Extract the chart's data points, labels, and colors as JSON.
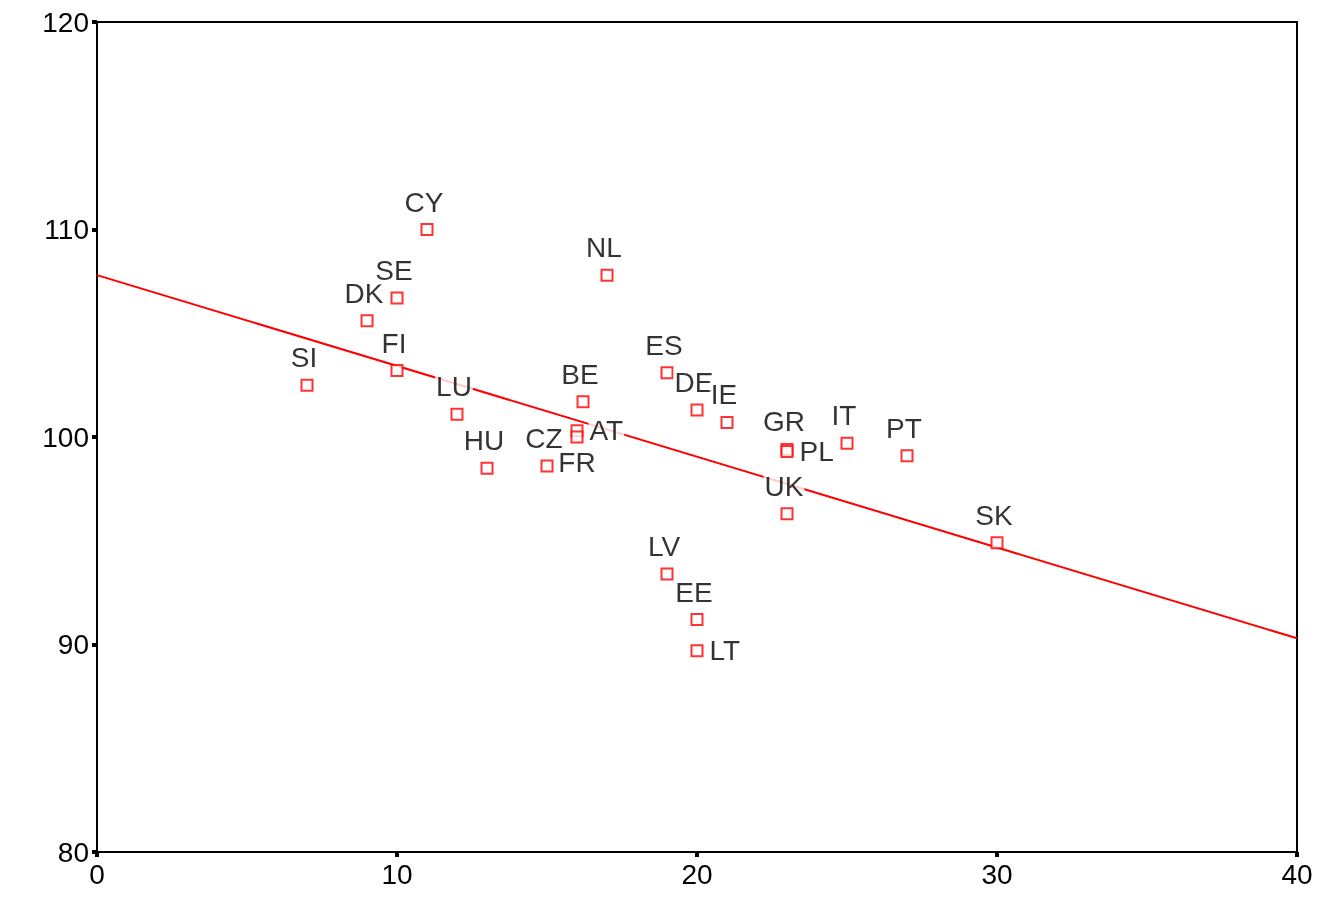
{
  "chart_data": {
    "type": "scatter",
    "xlim": [
      0,
      40
    ],
    "xticks": [
      0,
      10,
      20,
      30,
      40
    ],
    "ylim": [
      80,
      120
    ],
    "yticks": [
      80,
      90,
      100,
      110,
      120
    ],
    "grid": false,
    "series": [
      {
        "color": "#ff0000",
        "marker": "square",
        "x": [
          7,
          9,
          10,
          11,
          10,
          12,
          13,
          15,
          16.2,
          16,
          16,
          17,
          19,
          20,
          21,
          23,
          23,
          25,
          27,
          23,
          30,
          19,
          20,
          20
        ],
        "values": [
          102.5,
          105.6,
          106.7,
          110,
          103.2,
          101.1,
          98.5,
          98.6,
          101.7,
          100.3,
          100,
          107.8,
          103.1,
          101.3,
          100.7,
          99.4,
          99.3,
          99.7,
          99.1,
          96.3,
          94.9,
          93.4,
          91.2,
          89.7
        ],
        "value_labels": [
          "SI",
          "DK",
          "SE",
          "CY",
          "FI",
          "LU",
          "HU",
          "CZ",
          "BE",
          "AT",
          "FR",
          "NL",
          "ES",
          "DE",
          "IE",
          "GR",
          "PL",
          "IT",
          "PT",
          "UK",
          "SK",
          "LV",
          "EE",
          "LT"
        ]
      },
      {
        "type": "line",
        "color": "#ff0000",
        "marker": "none",
        "line_style": "solid",
        "x": [
          0,
          40
        ],
        "values": [
          107.8,
          90.3
        ]
      }
    ]
  }
}
